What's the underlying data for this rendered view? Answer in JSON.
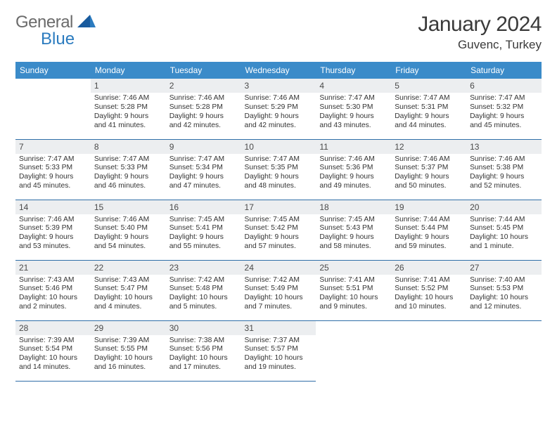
{
  "logo": {
    "text1": "General",
    "text2": "Blue"
  },
  "title": "January 2024",
  "location": "Guvenc, Turkey",
  "colors": {
    "header_bg": "#3b8bc9",
    "header_text": "#ffffff",
    "daynum_bg": "#eceef0",
    "row_divider": "#2f6ea8",
    "logo_gray": "#6b6b6b",
    "logo_blue": "#2b7bbf",
    "logo_shape": "#185a9d"
  },
  "weekdays": [
    "Sunday",
    "Monday",
    "Tuesday",
    "Wednesday",
    "Thursday",
    "Friday",
    "Saturday"
  ],
  "weeks": [
    [
      null,
      {
        "n": "1",
        "sr": "7:46 AM",
        "ss": "5:28 PM",
        "dl": "9 hours and 41 minutes."
      },
      {
        "n": "2",
        "sr": "7:46 AM",
        "ss": "5:28 PM",
        "dl": "9 hours and 42 minutes."
      },
      {
        "n": "3",
        "sr": "7:46 AM",
        "ss": "5:29 PM",
        "dl": "9 hours and 42 minutes."
      },
      {
        "n": "4",
        "sr": "7:47 AM",
        "ss": "5:30 PM",
        "dl": "9 hours and 43 minutes."
      },
      {
        "n": "5",
        "sr": "7:47 AM",
        "ss": "5:31 PM",
        "dl": "9 hours and 44 minutes."
      },
      {
        "n": "6",
        "sr": "7:47 AM",
        "ss": "5:32 PM",
        "dl": "9 hours and 45 minutes."
      }
    ],
    [
      {
        "n": "7",
        "sr": "7:47 AM",
        "ss": "5:33 PM",
        "dl": "9 hours and 45 minutes."
      },
      {
        "n": "8",
        "sr": "7:47 AM",
        "ss": "5:33 PM",
        "dl": "9 hours and 46 minutes."
      },
      {
        "n": "9",
        "sr": "7:47 AM",
        "ss": "5:34 PM",
        "dl": "9 hours and 47 minutes."
      },
      {
        "n": "10",
        "sr": "7:47 AM",
        "ss": "5:35 PM",
        "dl": "9 hours and 48 minutes."
      },
      {
        "n": "11",
        "sr": "7:46 AM",
        "ss": "5:36 PM",
        "dl": "9 hours and 49 minutes."
      },
      {
        "n": "12",
        "sr": "7:46 AM",
        "ss": "5:37 PM",
        "dl": "9 hours and 50 minutes."
      },
      {
        "n": "13",
        "sr": "7:46 AM",
        "ss": "5:38 PM",
        "dl": "9 hours and 52 minutes."
      }
    ],
    [
      {
        "n": "14",
        "sr": "7:46 AM",
        "ss": "5:39 PM",
        "dl": "9 hours and 53 minutes."
      },
      {
        "n": "15",
        "sr": "7:46 AM",
        "ss": "5:40 PM",
        "dl": "9 hours and 54 minutes."
      },
      {
        "n": "16",
        "sr": "7:45 AM",
        "ss": "5:41 PM",
        "dl": "9 hours and 55 minutes."
      },
      {
        "n": "17",
        "sr": "7:45 AM",
        "ss": "5:42 PM",
        "dl": "9 hours and 57 minutes."
      },
      {
        "n": "18",
        "sr": "7:45 AM",
        "ss": "5:43 PM",
        "dl": "9 hours and 58 minutes."
      },
      {
        "n": "19",
        "sr": "7:44 AM",
        "ss": "5:44 PM",
        "dl": "9 hours and 59 minutes."
      },
      {
        "n": "20",
        "sr": "7:44 AM",
        "ss": "5:45 PM",
        "dl": "10 hours and 1 minute."
      }
    ],
    [
      {
        "n": "21",
        "sr": "7:43 AM",
        "ss": "5:46 PM",
        "dl": "10 hours and 2 minutes."
      },
      {
        "n": "22",
        "sr": "7:43 AM",
        "ss": "5:47 PM",
        "dl": "10 hours and 4 minutes."
      },
      {
        "n": "23",
        "sr": "7:42 AM",
        "ss": "5:48 PM",
        "dl": "10 hours and 5 minutes."
      },
      {
        "n": "24",
        "sr": "7:42 AM",
        "ss": "5:49 PM",
        "dl": "10 hours and 7 minutes."
      },
      {
        "n": "25",
        "sr": "7:41 AM",
        "ss": "5:51 PM",
        "dl": "10 hours and 9 minutes."
      },
      {
        "n": "26",
        "sr": "7:41 AM",
        "ss": "5:52 PM",
        "dl": "10 hours and 10 minutes."
      },
      {
        "n": "27",
        "sr": "7:40 AM",
        "ss": "5:53 PM",
        "dl": "10 hours and 12 minutes."
      }
    ],
    [
      {
        "n": "28",
        "sr": "7:39 AM",
        "ss": "5:54 PM",
        "dl": "10 hours and 14 minutes."
      },
      {
        "n": "29",
        "sr": "7:39 AM",
        "ss": "5:55 PM",
        "dl": "10 hours and 16 minutes."
      },
      {
        "n": "30",
        "sr": "7:38 AM",
        "ss": "5:56 PM",
        "dl": "10 hours and 17 minutes."
      },
      {
        "n": "31",
        "sr": "7:37 AM",
        "ss": "5:57 PM",
        "dl": "10 hours and 19 minutes."
      },
      null,
      null,
      null
    ]
  ],
  "labels": {
    "sunrise": "Sunrise:",
    "sunset": "Sunset:",
    "daylight": "Daylight:"
  }
}
